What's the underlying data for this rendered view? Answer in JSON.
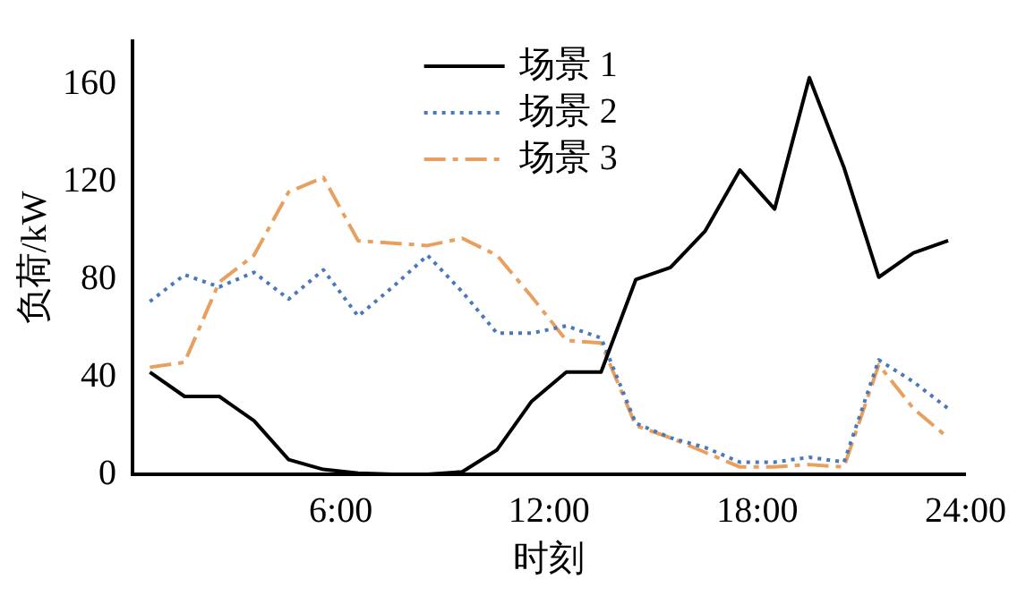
{
  "chart_data": {
    "type": "line",
    "xlabel": "时刻",
    "ylabel": "负荷/kW",
    "x": [
      0.5,
      1.5,
      2.5,
      3.5,
      4.5,
      5.5,
      6.5,
      7.5,
      8.5,
      9.5,
      10.5,
      11.5,
      12.5,
      13.5,
      14.5,
      15.5,
      16.5,
      17.5,
      18.5,
      19.5,
      20.5,
      21.5,
      22.5,
      23.5
    ],
    "series": [
      {
        "name": "场景 1",
        "color": "#000000",
        "line_style": "solid",
        "values": [
          42,
          32,
          32,
          22,
          6,
          2,
          0.5,
          0,
          0,
          1,
          10,
          30,
          42,
          42,
          80,
          85,
          100,
          125,
          109,
          163,
          126,
          81,
          91,
          96
        ]
      },
      {
        "name": "场景 2",
        "color": "#4a78b8",
        "line_style": "dotted",
        "values": [
          71,
          82,
          77,
          83,
          72,
          84,
          65,
          77,
          90,
          75,
          58,
          58,
          61,
          56,
          21,
          15,
          11,
          5,
          5,
          7,
          5,
          47,
          38,
          27
        ]
      },
      {
        "name": "场景 3",
        "color": "#e8a060",
        "line_style": "dashed",
        "values": [
          44,
          46,
          79,
          90,
          116,
          122,
          96,
          95,
          94,
          97,
          90,
          73,
          55,
          54,
          20,
          15,
          9,
          3,
          3,
          4,
          3,
          45,
          27,
          15
        ]
      }
    ],
    "xlim": [
      0,
      24
    ],
    "xticks": [
      {
        "value": 6,
        "label": "6:00"
      },
      {
        "value": 12,
        "label": "12:00"
      },
      {
        "value": 18,
        "label": "18:00"
      },
      {
        "value": 24,
        "label": "24:00"
      }
    ],
    "ylim": [
      0,
      178
    ],
    "yticks": [
      0,
      40,
      80,
      120,
      160
    ],
    "grid": false,
    "legend": "top right",
    "marker": "none"
  }
}
